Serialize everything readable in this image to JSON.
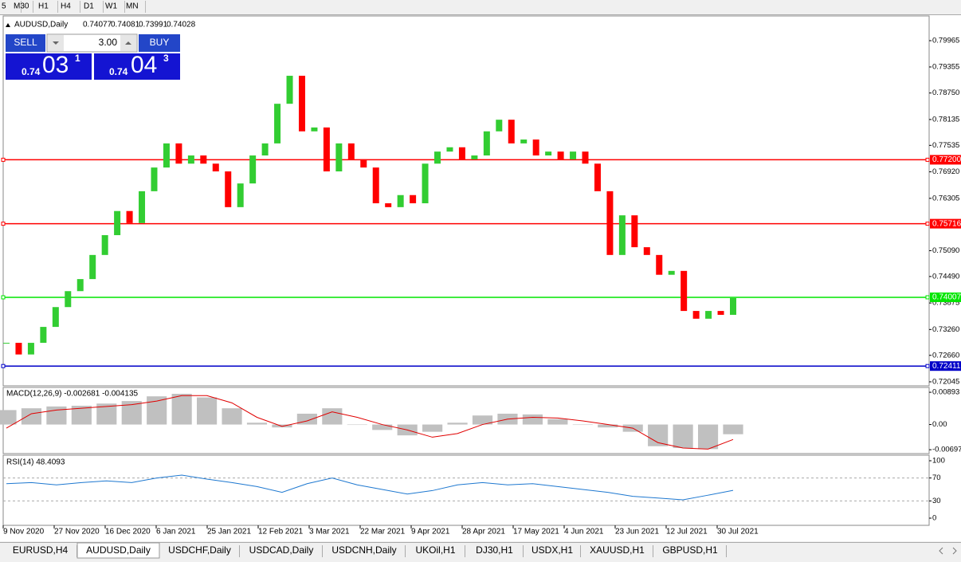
{
  "toolbar": {
    "timeframes": [
      "5",
      "M30",
      "H1",
      "H4",
      "D1",
      "W1",
      "MN"
    ]
  },
  "trade_panel": {
    "sell": "SELL",
    "lot": "3.00",
    "buy": "BUY",
    "bid": {
      "prefix": "0.74",
      "big": "03",
      "small": "1"
    },
    "ask": {
      "prefix": "0.74",
      "big": "04",
      "small": "3"
    }
  },
  "chart_data": [
    {
      "type": "candlestick",
      "title": "AUDUSD,Daily",
      "ohlc": [
        0.74077,
        0.74081,
        0.73991,
        0.74028
      ],
      "up_color": "#32cd32",
      "down_color": "#ff0000",
      "close": [
        0.7295,
        0.7268,
        0.7295,
        0.7332,
        0.7378,
        0.7415,
        0.7443,
        0.7499,
        0.7545,
        0.7601,
        0.7573,
        0.7647,
        0.7702,
        0.7758,
        0.7711,
        0.773,
        0.7711,
        0.7693,
        0.761,
        0.7665,
        0.773,
        0.7758,
        0.785,
        0.7915,
        0.7786,
        0.7795,
        0.7693,
        0.7758,
        0.7721,
        0.7702,
        0.7619,
        0.761,
        0.7638,
        0.7619,
        0.7711,
        0.7739,
        0.7749,
        0.7721,
        0.773,
        0.7786,
        0.7813,
        0.7758,
        0.7767,
        0.773,
        0.7739,
        0.7721,
        0.7739,
        0.7711,
        0.7647,
        0.7499,
        0.7591,
        0.7517,
        0.7499,
        0.7453,
        0.7462,
        0.7369,
        0.7351,
        0.7369,
        0.736,
        0.7399
      ],
      "ylim": [
        0.71952,
        0.80539
      ],
      "yticks": [
        0.79965,
        0.79355,
        {
          "value": 0.7875,
          "label": "0.78750"
        },
        0.78135,
        0.77535,
        {
          "value": 0.7692,
          "label": "0.76920"
        },
        0.76305,
        {
          "value": 0.7509,
          "label": "0.75090"
        },
        {
          "value": 0.7449,
          "label": "0.74490"
        },
        0.73875,
        {
          "value": 0.7326,
          "label": "0.73260"
        },
        {
          "value": 0.7266,
          "label": "0.72660"
        },
        0.72045
      ],
      "levels": [
        {
          "value": 0.772,
          "label": "0.77200",
          "color": "#ff0000"
        },
        {
          "value": 0.75716,
          "label": "0.75716",
          "color": "#ff0000"
        },
        {
          "value": 0.74007,
          "label": "0.74007",
          "color": "#00e600"
        },
        {
          "value": 0.72411,
          "label": "0.72411",
          "color": "#0000c8"
        }
      ],
      "x_labels": [
        "9 Nov 2020",
        "27 Nov 2020",
        "16 Dec 2020",
        "6 Jan 2021",
        "25 Jan 2021",
        "12 Feb 2021",
        "3 Mar 2021",
        "22 Mar 2021",
        "9 Apr 2021",
        "28 Apr 2021",
        "17 May 2021",
        "4 Jun 2021",
        "23 Jun 2021",
        "12 Jul 2021",
        "30 Jul 2021"
      ]
    },
    {
      "type": "macd",
      "title": "MACD(12,26,9) -0.002681 -0.004135",
      "hist_color": "#c0c0c0",
      "signal_color": "#e00000",
      "histogram": [
        0.004,
        0.0045,
        0.005,
        0.0052,
        0.0058,
        0.0065,
        0.0078,
        0.0085,
        0.0075,
        0.0045,
        0.0005,
        -0.0008,
        0.003,
        0.0045,
        0.0,
        -0.0015,
        -0.003,
        -0.002,
        0.0005,
        0.0025,
        0.003,
        0.0028,
        0.0015,
        0.0,
        -0.0008,
        -0.002,
        -0.006,
        -0.0065,
        -0.0068,
        -0.002681
      ],
      "signal": [
        -0.001,
        0.003,
        0.004,
        0.0045,
        0.005,
        0.0055,
        0.0065,
        0.008,
        0.008,
        0.006,
        0.002,
        -0.0005,
        0.001,
        0.0035,
        0.002,
        0.0,
        -0.0015,
        -0.0035,
        -0.0025,
        0.0,
        0.0015,
        0.002,
        0.0018,
        0.001,
        0.0,
        -0.001,
        -0.005,
        -0.0065,
        -0.0068,
        -0.004135
      ],
      "ylim": [
        -0.00804,
        0.01027
      ],
      "yticks": [
        0.00893,
        {
          "value": 0,
          "label": "0.00"
        },
        -0.00697
      ]
    },
    {
      "type": "line",
      "title": "RSI(14) 48.4093",
      "color": "#1e78d0",
      "values": [
        60,
        62,
        58,
        62,
        65,
        62,
        70,
        75,
        68,
        62,
        55,
        45,
        60,
        70,
        58,
        50,
        42,
        48,
        58,
        62,
        58,
        60,
        55,
        50,
        45,
        38,
        35,
        32,
        40,
        48.4093
      ],
      "ylim": [
        -12.5,
        109.7
      ],
      "yticks": [
        100,
        70,
        30,
        0
      ]
    }
  ],
  "tabs": [
    "EURUSD,H4",
    "AUDUSD,Daily",
    "USDCHF,Daily",
    "USDCAD,Daily",
    "USDCNH,Daily",
    "UKOil,H1",
    "DJ30,H1",
    "USDX,H1",
    "XAUUSD,H1",
    "GBPUSD,H1"
  ]
}
